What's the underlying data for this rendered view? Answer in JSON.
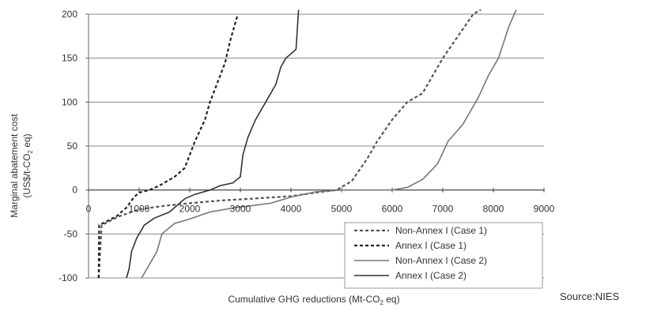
{
  "chart_data": {
    "type": "line",
    "title": "",
    "xlabel": "Cumulative GHG reductions (Mt-CO",
    "xlabel_sub": "2",
    "xlabel_end": " eq)",
    "ylabel_line1": "Marginal abatement cost",
    "ylabel_line2": "(US$/t-CO",
    "ylabel_line2_sub": "2",
    "ylabel_line2_end": " eq)",
    "xlim": [
      0,
      9000
    ],
    "ylim": [
      -100,
      200
    ],
    "xticks": [
      0,
      1000,
      2000,
      3000,
      4000,
      5000,
      6000,
      7000,
      8000,
      9000
    ],
    "xtick_labels": [
      "0",
      "1000",
      "2000",
      "3000",
      "4000",
      "5000",
      "6000",
      "7000",
      "8000",
      "9000"
    ],
    "yticks": [
      -100,
      -50,
      0,
      50,
      100,
      150,
      200
    ],
    "ytick_labels": [
      "-100",
      "-50",
      "0",
      "50",
      "100",
      "150",
      "200"
    ],
    "grid": "horizontal",
    "legend_position": "bottom-right",
    "series": [
      {
        "name": "Non-Annex I (Case 1)",
        "style": "dashed",
        "color": "#555555",
        "points": [
          [
            200,
            -100
          ],
          [
            260,
            -40
          ],
          [
            600,
            -30
          ],
          [
            1000,
            -22
          ],
          [
            1500,
            -18
          ],
          [
            2000,
            -15
          ],
          [
            2600,
            -12
          ],
          [
            3200,
            -10
          ],
          [
            4000,
            -7
          ],
          [
            4500,
            -3
          ],
          [
            4900,
            0
          ],
          [
            5200,
            10
          ],
          [
            5500,
            35
          ],
          [
            5700,
            55
          ],
          [
            6000,
            80
          ],
          [
            6300,
            100
          ],
          [
            6600,
            110
          ],
          [
            6800,
            130
          ],
          [
            7000,
            150
          ],
          [
            7300,
            175
          ],
          [
            7600,
            200
          ],
          [
            7750,
            205
          ]
        ]
      },
      {
        "name": "Annex I (Case 1)",
        "style": "dashed",
        "color": "#222222",
        "points": [
          [
            200,
            -100
          ],
          [
            210,
            -40
          ],
          [
            550,
            -30
          ],
          [
            750,
            -20
          ],
          [
            900,
            -8
          ],
          [
            1000,
            -3
          ],
          [
            1200,
            0
          ],
          [
            1400,
            5
          ],
          [
            1700,
            15
          ],
          [
            1900,
            25
          ],
          [
            2000,
            40
          ],
          [
            2100,
            55
          ],
          [
            2300,
            80
          ],
          [
            2400,
            100
          ],
          [
            2500,
            115
          ],
          [
            2700,
            145
          ],
          [
            2800,
            170
          ],
          [
            2900,
            190
          ],
          [
            2950,
            200
          ]
        ]
      },
      {
        "name": "Non-Annex I (Case 2)",
        "style": "solid",
        "color": "#777777",
        "points": [
          [
            1050,
            -100
          ],
          [
            1150,
            -90
          ],
          [
            1350,
            -70
          ],
          [
            1450,
            -50
          ],
          [
            1700,
            -38
          ],
          [
            2000,
            -33
          ],
          [
            2400,
            -25
          ],
          [
            2900,
            -20
          ],
          [
            3200,
            -18
          ],
          [
            3600,
            -15
          ],
          [
            4000,
            -8
          ],
          [
            4500,
            -2
          ],
          [
            5000,
            0
          ],
          [
            6000,
            0
          ],
          [
            6300,
            3
          ],
          [
            6600,
            12
          ],
          [
            6900,
            30
          ],
          [
            7100,
            55
          ],
          [
            7400,
            75
          ],
          [
            7700,
            105
          ],
          [
            7900,
            130
          ],
          [
            8100,
            150
          ],
          [
            8300,
            185
          ],
          [
            8450,
            205
          ]
        ]
      },
      {
        "name": "Annex I (Case 2)",
        "style": "solid",
        "color": "#333333",
        "points": [
          [
            750,
            -100
          ],
          [
            800,
            -90
          ],
          [
            850,
            -70
          ],
          [
            950,
            -55
          ],
          [
            1100,
            -40
          ],
          [
            1300,
            -32
          ],
          [
            1600,
            -25
          ],
          [
            1900,
            -10
          ],
          [
            2100,
            -5
          ],
          [
            2400,
            0
          ],
          [
            2600,
            5
          ],
          [
            2850,
            8
          ],
          [
            3000,
            15
          ],
          [
            3050,
            40
          ],
          [
            3150,
            60
          ],
          [
            3300,
            80
          ],
          [
            3500,
            100
          ],
          [
            3600,
            110
          ],
          [
            3700,
            120
          ],
          [
            3800,
            140
          ],
          [
            3900,
            150
          ],
          [
            4000,
            155
          ],
          [
            4100,
            160
          ],
          [
            4150,
            205
          ]
        ]
      }
    ],
    "annotation": "Source:NIES"
  }
}
